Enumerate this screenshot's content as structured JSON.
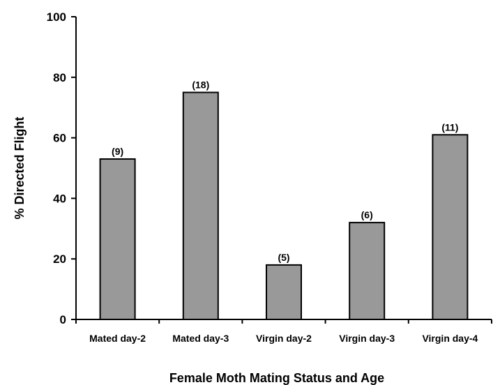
{
  "chart_data": {
    "type": "bar",
    "title": "",
    "xlabel": "Female Moth Mating Status and Age",
    "ylabel": "% Directed Flight",
    "categories": [
      "Mated day-2",
      "Mated day-3",
      "Virgin day-2",
      "Virgin day-3",
      "Virgin day-4"
    ],
    "values": [
      53,
      75,
      18,
      32,
      61
    ],
    "data_labels": [
      "(9)",
      "(18)",
      "(5)",
      "(6)",
      "(11)"
    ],
    "ylim": [
      0,
      100
    ],
    "yticks": [
      0,
      20,
      40,
      60,
      80,
      100
    ],
    "grid": false,
    "legend": "none",
    "bar_color": "#999999",
    "bar_edge_color": "#000000"
  }
}
